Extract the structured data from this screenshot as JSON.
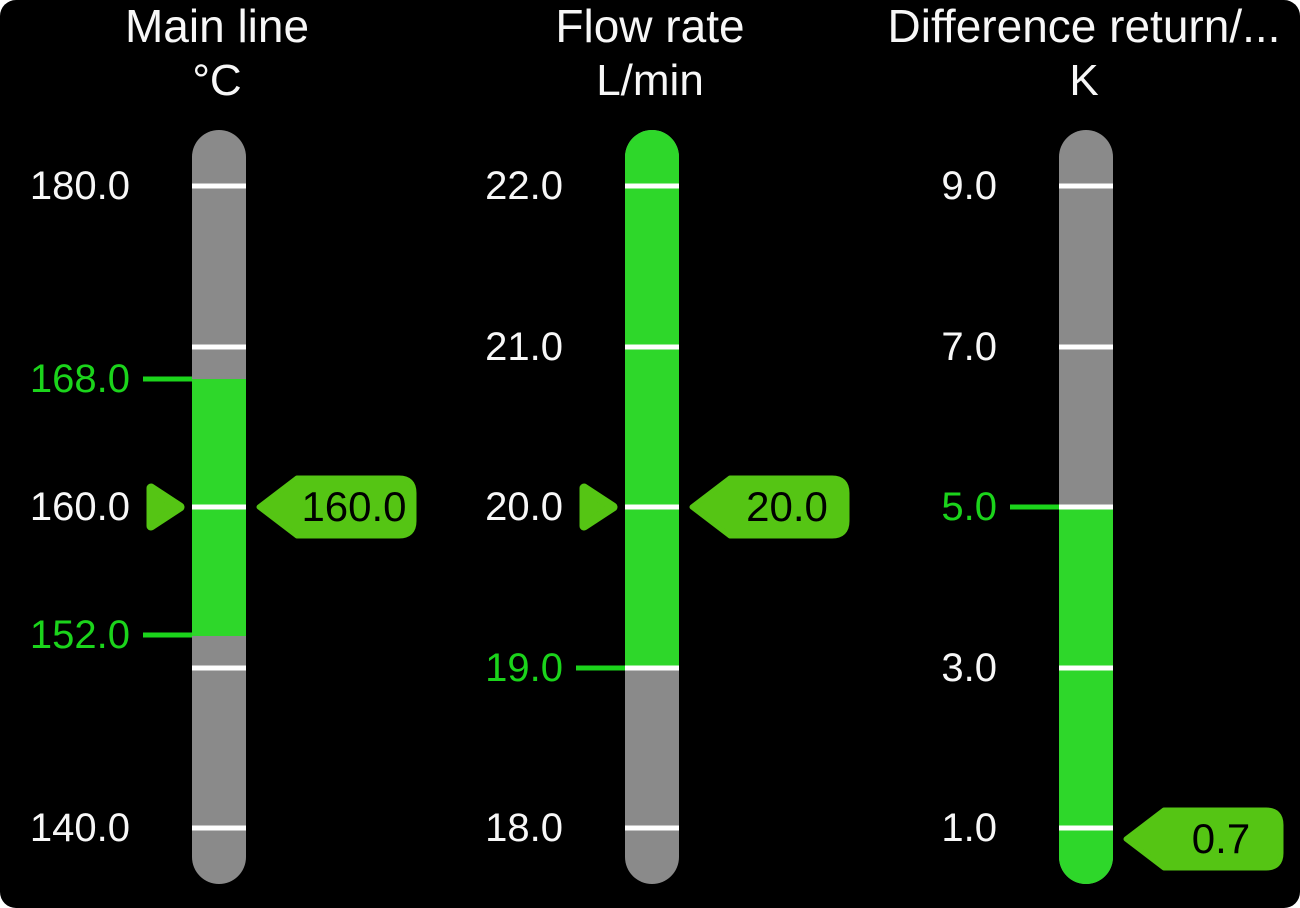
{
  "screen": {
    "background": "#000000",
    "corner_backdrop": "#ffffff"
  },
  "colors": {
    "bar_neutral": "#8a8a8a",
    "bar_good_zone": "#2ed72a",
    "indicator_green": "#55c514",
    "tick_white": "#ffffff",
    "scale_label": "#f7f7f7",
    "limit_green": "#1bd41b",
    "tag_text": "#000000"
  },
  "chart_data": [
    {
      "type": "bar",
      "gauge_style": "vertical-bar-gauge",
      "title": "Main line",
      "unit": "°C",
      "min": 140.0,
      "max": 180.0,
      "ticks": [
        180.0,
        170.0,
        160.0,
        150.0,
        140.0
      ],
      "labels": [
        {
          "value": 180.0,
          "text": "180.0",
          "kind": "scale"
        },
        {
          "value": 168.0,
          "text": "168.0",
          "kind": "limit"
        },
        {
          "value": 160.0,
          "text": "160.0",
          "kind": "scale"
        },
        {
          "value": 152.0,
          "text": "152.0",
          "kind": "limit"
        },
        {
          "value": 140.0,
          "text": "140.0",
          "kind": "scale"
        }
      ],
      "good_zone": {
        "from": 152.0,
        "to": 168.0
      },
      "value": 160.0,
      "value_text": "160.0"
    },
    {
      "type": "bar",
      "gauge_style": "vertical-bar-gauge",
      "title": "Flow rate",
      "unit": "L/min",
      "min": 18.0,
      "max": 22.0,
      "ticks": [
        22.0,
        21.0,
        20.0,
        19.0,
        18.0
      ],
      "labels": [
        {
          "value": 22.0,
          "text": "22.0",
          "kind": "scale"
        },
        {
          "value": 21.0,
          "text": "21.0",
          "kind": "scale"
        },
        {
          "value": 20.0,
          "text": "20.0",
          "kind": "scale"
        },
        {
          "value": 19.0,
          "text": "19.0",
          "kind": "limit"
        },
        {
          "value": 18.0,
          "text": "18.0",
          "kind": "scale"
        }
      ],
      "good_zone": {
        "from": 19.0,
        "to": "bar-top"
      },
      "value": 20.0,
      "value_text": "20.0"
    },
    {
      "type": "bar",
      "gauge_style": "vertical-bar-gauge",
      "title": "Difference return/...",
      "unit": "K",
      "min": 1.0,
      "max": 9.0,
      "ticks": [
        9.0,
        7.0,
        5.0,
        3.0,
        1.0
      ],
      "labels": [
        {
          "value": 9.0,
          "text": "9.0",
          "kind": "scale"
        },
        {
          "value": 7.0,
          "text": "7.0",
          "kind": "scale"
        },
        {
          "value": 5.0,
          "text": "5.0",
          "kind": "limit"
        },
        {
          "value": 3.0,
          "text": "3.0",
          "kind": "scale"
        },
        {
          "value": 1.0,
          "text": "1.0",
          "kind": "scale"
        }
      ],
      "good_zone": {
        "from": "bar-bottom",
        "to": 5.0
      },
      "value": 0.7,
      "value_text": "0.7"
    }
  ]
}
